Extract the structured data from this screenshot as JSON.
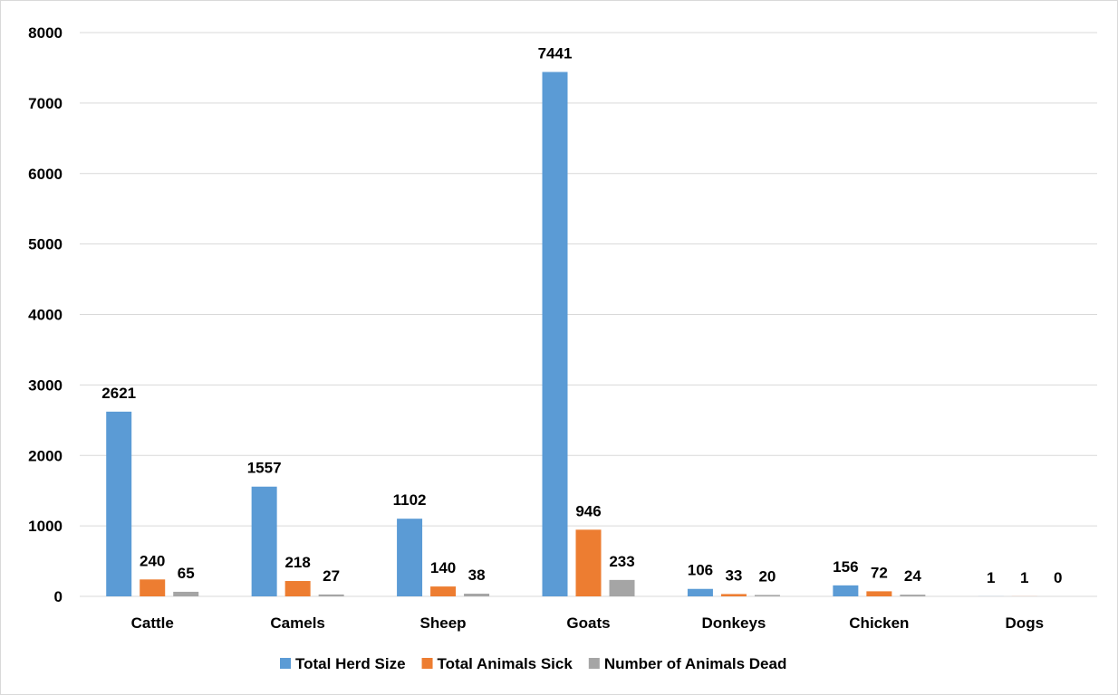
{
  "chart_data": {
    "type": "bar",
    "title": "",
    "xlabel": "",
    "ylabel": "",
    "categories": [
      "Cattle",
      "Camels",
      "Sheep",
      "Goats",
      "Donkeys",
      "Chicken",
      "Dogs"
    ],
    "series": [
      {
        "name": "Total Herd Size",
        "color": "#5b9bd5",
        "values": [
          2621,
          1557,
          1102,
          7441,
          106,
          156,
          1
        ]
      },
      {
        "name": "Total Animals Sick",
        "color": "#ed7d31",
        "values": [
          240,
          218,
          140,
          946,
          33,
          72,
          1
        ]
      },
      {
        "name": "Number of Animals Dead",
        "color": "#a5a5a5",
        "values": [
          65,
          27,
          38,
          233,
          20,
          24,
          0
        ]
      }
    ],
    "ylim": [
      0,
      8000
    ],
    "yticks": [
      0,
      1000,
      2000,
      3000,
      4000,
      5000,
      6000,
      7000,
      8000
    ],
    "grid": true,
    "legend_position": "bottom",
    "data_labels": true
  }
}
